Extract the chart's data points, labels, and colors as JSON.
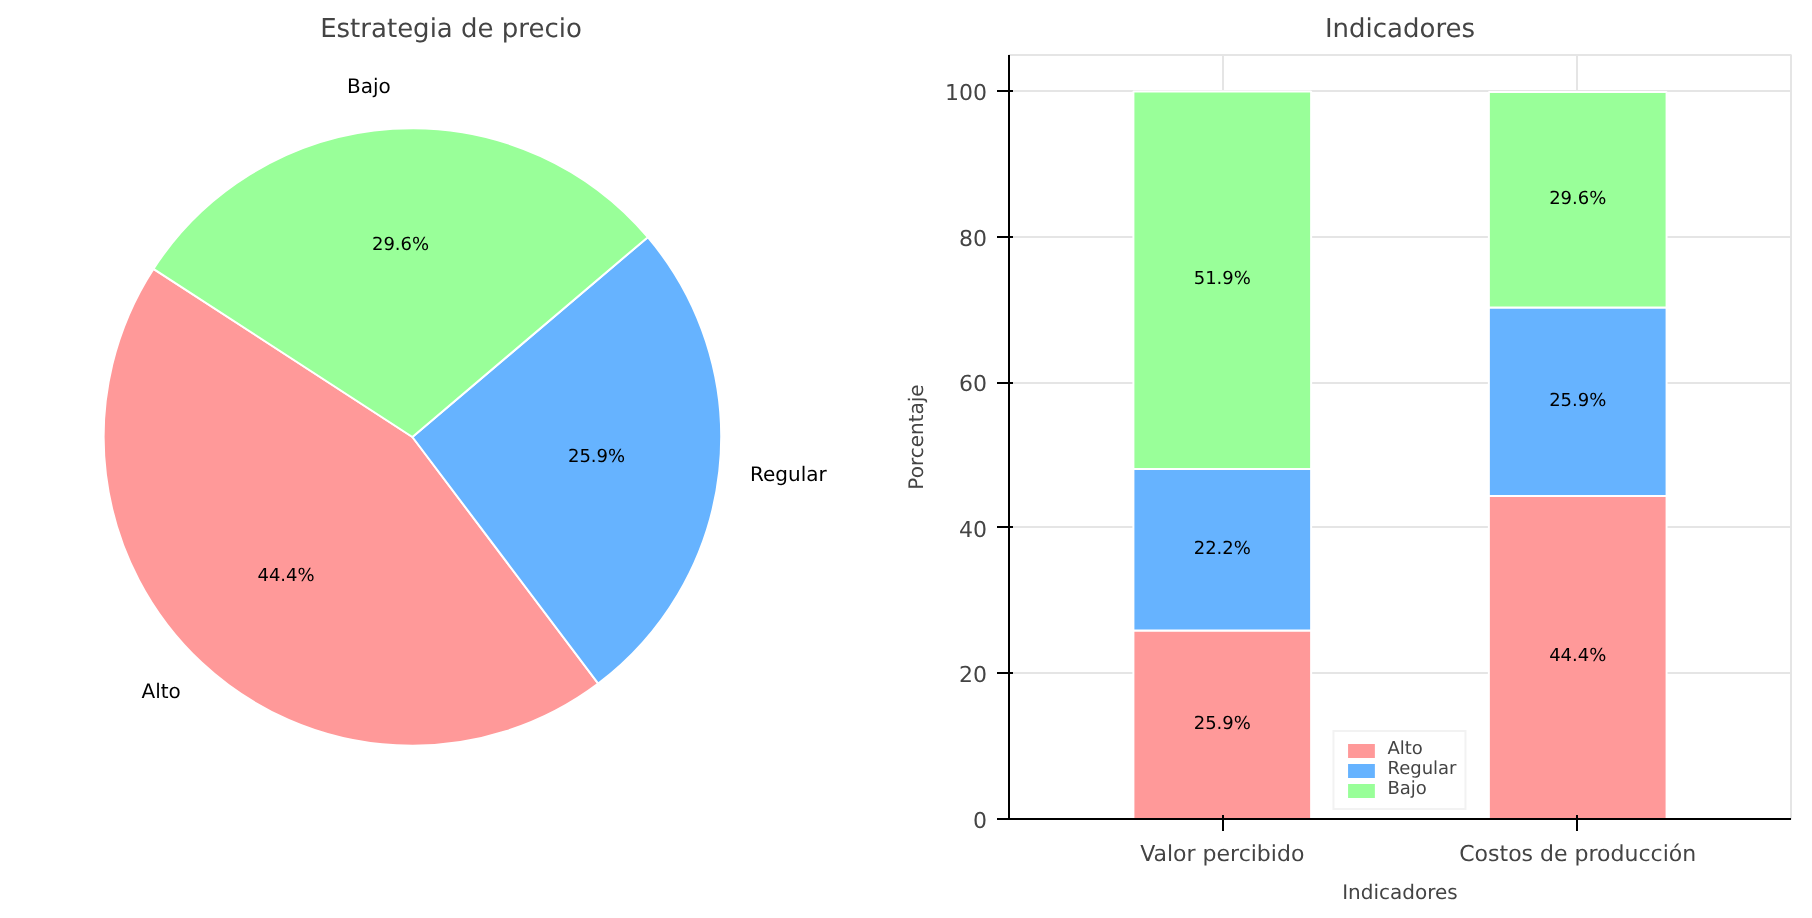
{
  "chart_data": [
    {
      "type": "pie",
      "title": "Estrategia de precio",
      "categories": [
        "Alto",
        "Regular",
        "Bajo"
      ],
      "values": [
        44.4,
        25.9,
        29.6
      ],
      "colors": [
        "#ff9999",
        "#66b3ff",
        "#99ff99"
      ],
      "value_labels": [
        "44.4%",
        "25.9%",
        "29.6%"
      ]
    },
    {
      "type": "bar",
      "title": "Indicadores",
      "xlabel": "Indicadores",
      "ylabel": "Porcentaje",
      "categories": [
        "Valor percibido",
        "Costos de producción"
      ],
      "stacked": true,
      "ylim": [
        0,
        105
      ],
      "yticks": [
        0,
        20,
        40,
        60,
        80,
        100
      ],
      "grid": true,
      "legend": "bottom",
      "series": [
        {
          "name": "Alto",
          "color": "#ff9999",
          "values": [
            25.9,
            44.4
          ],
          "value_labels": [
            "25.9%",
            "44.4%"
          ]
        },
        {
          "name": "Regular",
          "color": "#66b3ff",
          "values": [
            22.2,
            25.9
          ],
          "value_labels": [
            "22.2%",
            "25.9%"
          ]
        },
        {
          "name": "Bajo",
          "color": "#99ff99",
          "values": [
            51.9,
            29.6
          ],
          "value_labels": [
            "51.9%",
            "29.6%"
          ]
        }
      ]
    }
  ]
}
